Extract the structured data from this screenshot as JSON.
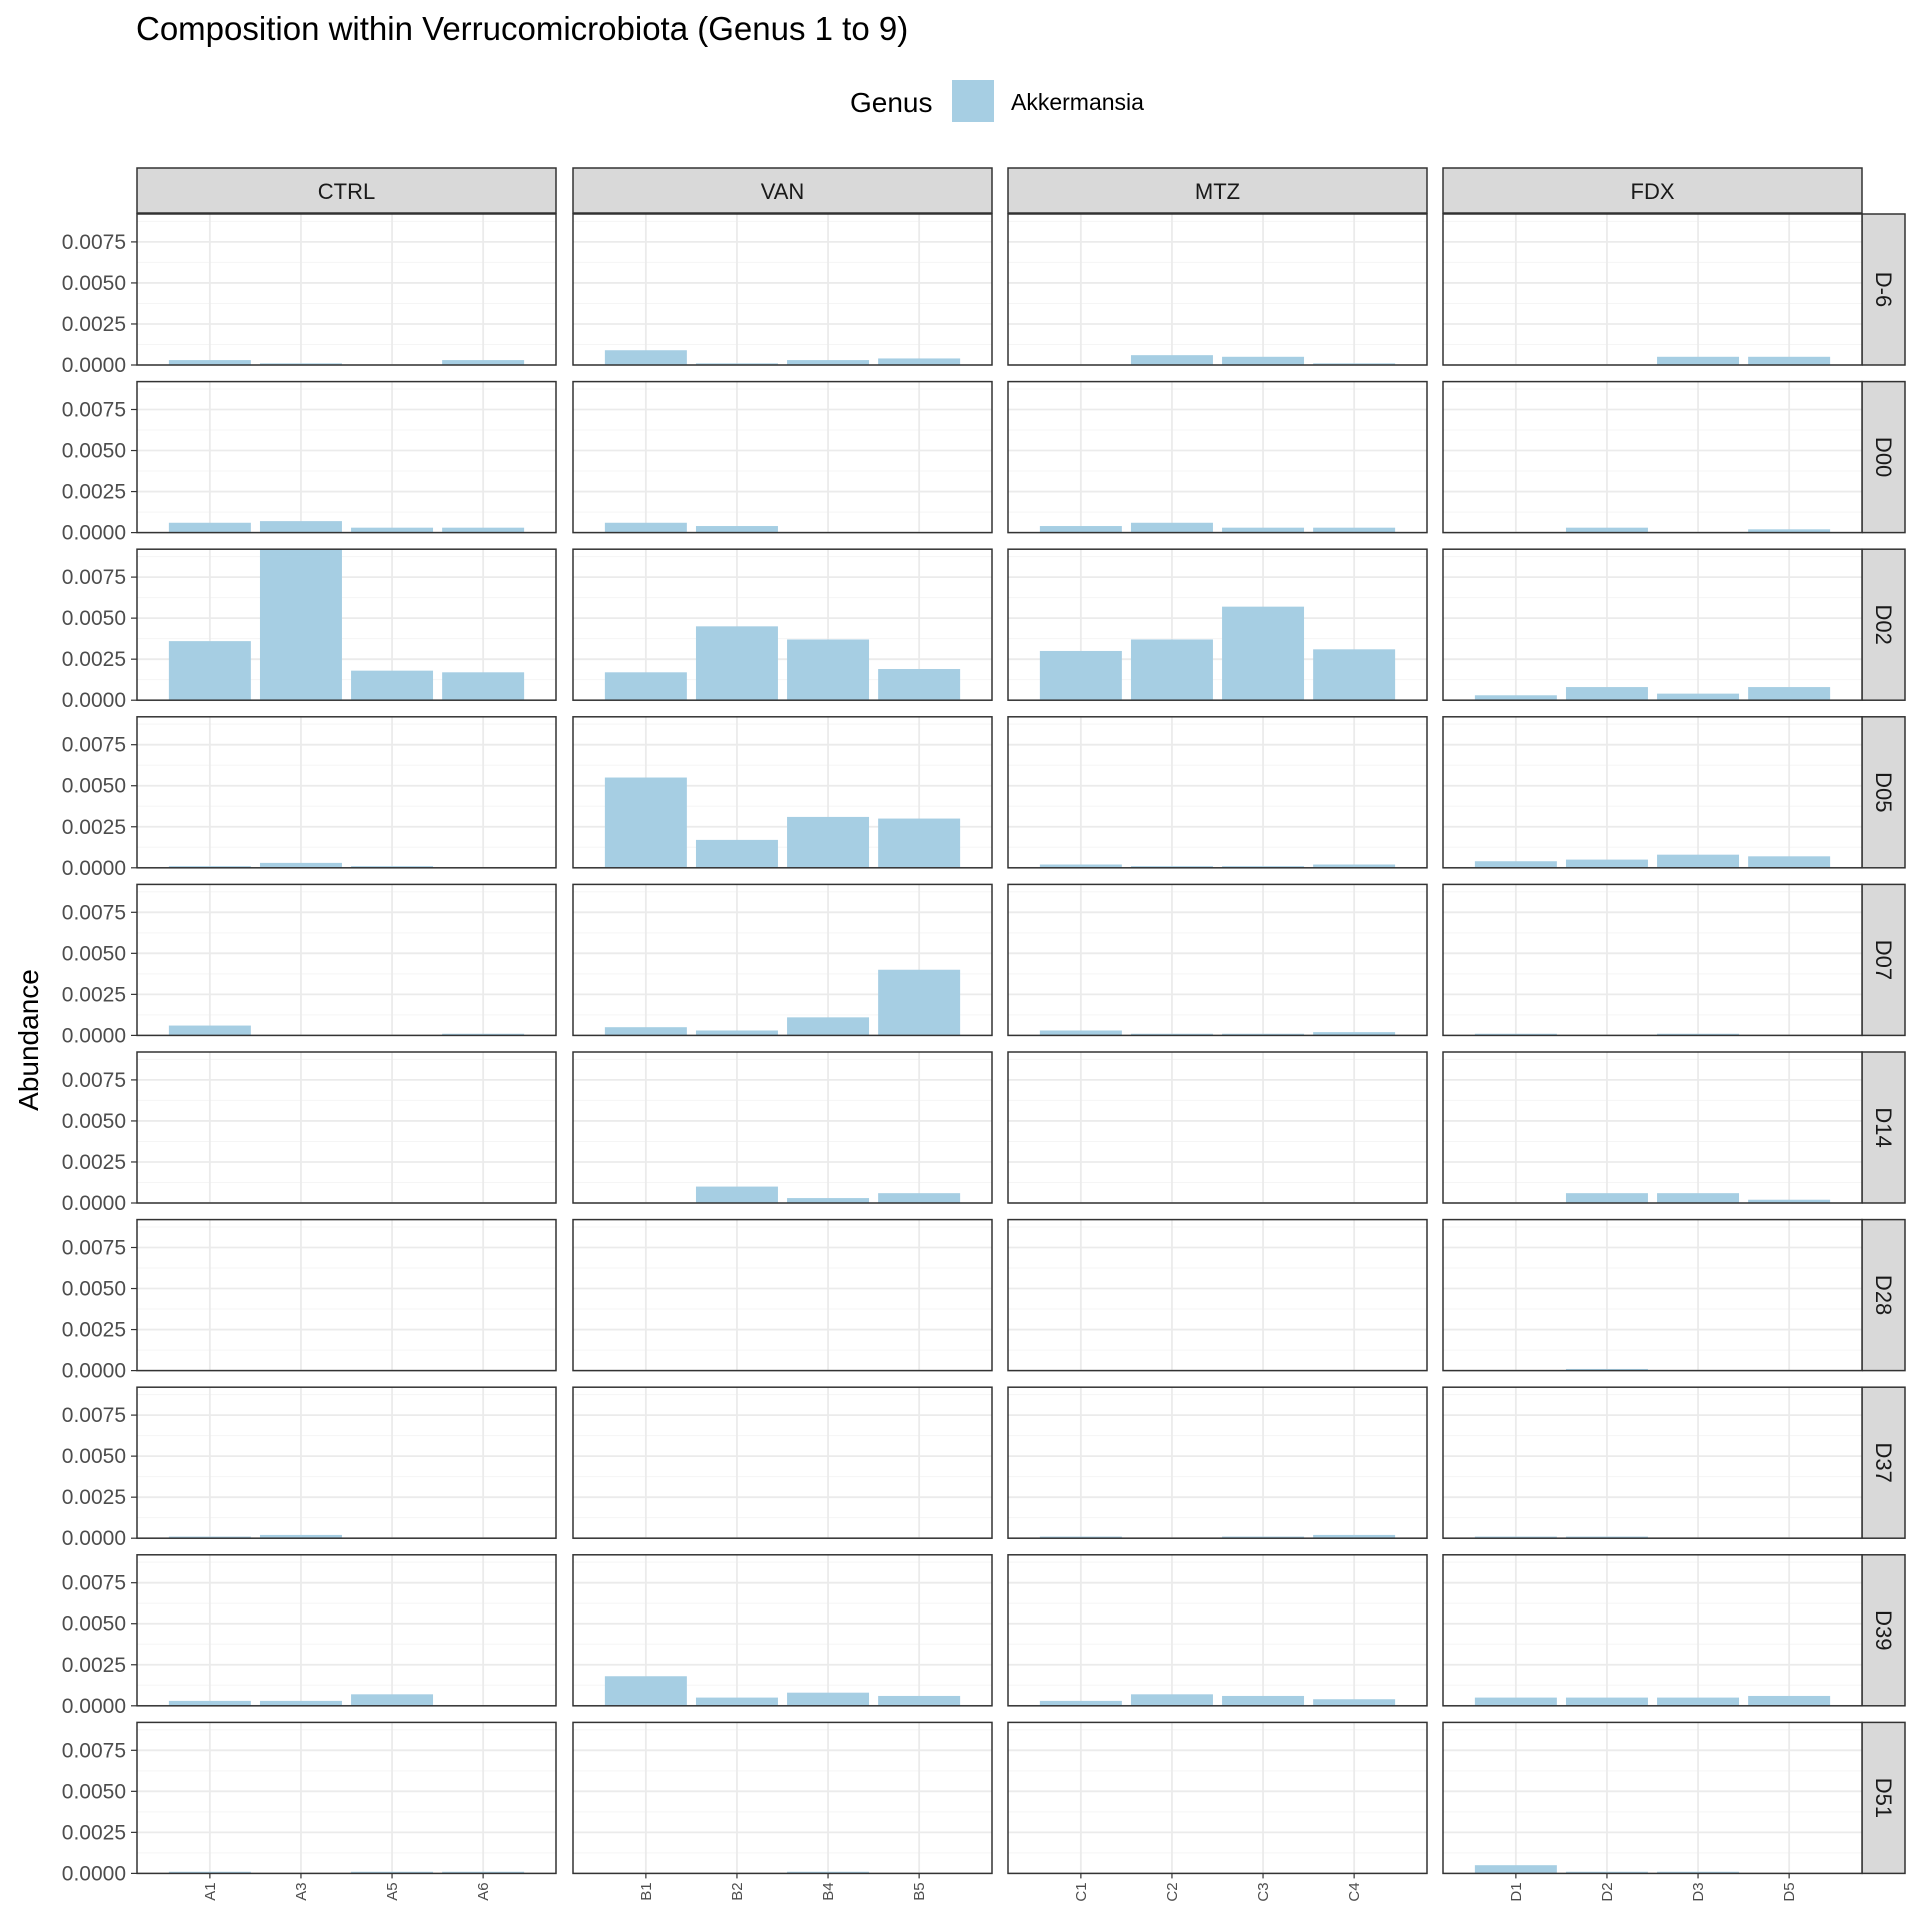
{
  "chart_data": {
    "type": "bar",
    "title": "Composition within Verrucomicrobiota (Genus 1 to 9)",
    "ylabel": "Abundance",
    "xlabel": "",
    "ylim": [
      0,
      0.0092
    ],
    "yticks": [
      "0.0000",
      "0.0025",
      "0.0050",
      "0.0075"
    ],
    "ytick_values": [
      0,
      0.0025,
      0.005,
      0.0075
    ],
    "grid": true,
    "legend": {
      "title": "Genus",
      "position": "top",
      "entries": [
        {
          "label": "Akkermansia",
          "color": "#a6cee3"
        }
      ]
    },
    "facet_columns": [
      {
        "label": "CTRL",
        "samples": [
          "A1",
          "A3",
          "A5",
          "A6"
        ]
      },
      {
        "label": "VAN",
        "samples": [
          "B1",
          "B2",
          "B4",
          "B5"
        ]
      },
      {
        "label": "MTZ",
        "samples": [
          "C1",
          "C2",
          "C3",
          "C4"
        ]
      },
      {
        "label": "FDX",
        "samples": [
          "D1",
          "D2",
          "D3",
          "D5"
        ]
      }
    ],
    "facet_rows": [
      "D-6",
      "D00",
      "D02",
      "D05",
      "D07",
      "D14",
      "D28",
      "D37",
      "D39",
      "D51"
    ],
    "values": [
      [
        [
          0.0003,
          0.0001,
          0,
          0.0003
        ],
        [
          0.0009,
          0.0001,
          0.0003,
          0.0004
        ],
        [
          0,
          0.0006,
          0.0005,
          0.0001
        ],
        [
          0,
          0,
          0.0005,
          0.0005
        ]
      ],
      [
        [
          0.0006,
          0.0007,
          0.0003,
          0.0003
        ],
        [
          0.0006,
          0.0004,
          0,
          0
        ],
        [
          0.0004,
          0.0006,
          0.0003,
          0.0003
        ],
        [
          0,
          0.0003,
          0,
          0.0002
        ]
      ],
      [
        [
          0.0036,
          0.0092,
          0.0018,
          0.0017
        ],
        [
          0.0017,
          0.0045,
          0.0037,
          0.0019
        ],
        [
          0.003,
          0.0037,
          0.0057,
          0.0031
        ],
        [
          0.0003,
          0.0008,
          0.0004,
          0.0008
        ]
      ],
      [
        [
          0.0001,
          0.0003,
          0.0001,
          0
        ],
        [
          0.0055,
          0.0017,
          0.0031,
          0.003
        ],
        [
          0.0002,
          0.0001,
          0.0001,
          0.0002
        ],
        [
          0.0004,
          0.0005,
          0.0008,
          0.0007
        ]
      ],
      [
        [
          0.0006,
          0,
          0,
          0.0001
        ],
        [
          0.0005,
          0.0003,
          0.0011,
          0.004
        ],
        [
          0.0003,
          0.0001,
          0.0001,
          0.0002
        ],
        [
          0.0001,
          0,
          0.0001,
          0
        ]
      ],
      [
        [
          0,
          0,
          0,
          0
        ],
        [
          0,
          0.001,
          0.0003,
          0.0006
        ],
        [
          0,
          0,
          0,
          0
        ],
        [
          0,
          0.0006,
          0.0006,
          0.0002
        ]
      ],
      [
        [
          0,
          0,
          0,
          0
        ],
        [
          0,
          0,
          0,
          0
        ],
        [
          0,
          0,
          0,
          0
        ],
        [
          0,
          0.0001,
          0,
          0
        ]
      ],
      [
        [
          0.0001,
          0.0002,
          0,
          0
        ],
        [
          0,
          0,
          0,
          0
        ],
        [
          0.0001,
          0,
          0.0001,
          0.0002
        ],
        [
          0.0001,
          0.0001,
          0,
          0
        ]
      ],
      [
        [
          0.0003,
          0.0003,
          0.0007,
          0
        ],
        [
          0.0018,
          0.0005,
          0.0008,
          0.0006
        ],
        [
          0.0003,
          0.0007,
          0.0006,
          0.0004
        ],
        [
          0.0005,
          0.0005,
          0.0005,
          0.0006
        ]
      ],
      [
        [
          0.0001,
          0,
          0.0001,
          0.0001
        ],
        [
          0,
          0,
          0.0001,
          0
        ],
        [
          0,
          0,
          0,
          0
        ],
        [
          0.0005,
          0.0001,
          0.0001,
          0
        ]
      ]
    ],
    "colors": {
      "bar": "#a6cee3",
      "panel_border": "#333333",
      "strip_fill": "#d9d9d9",
      "grid_major": "#ebebeb",
      "grid_minor": "#f5f5f5"
    }
  }
}
